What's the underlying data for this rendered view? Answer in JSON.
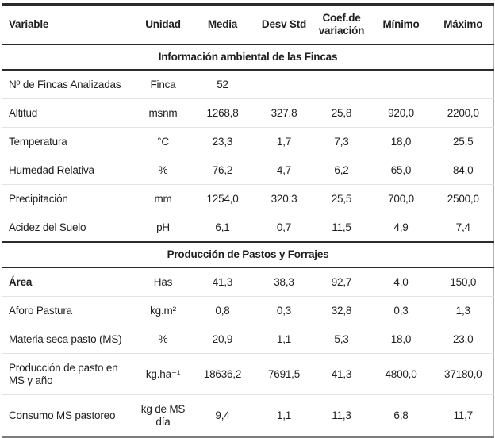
{
  "colors": {
    "text": "#1f1f1f",
    "border_dark": "#2b2b2b",
    "border_light": "#e3e3e3",
    "border_bottom_gray": "#7c7c7c",
    "border_side_gray": "#b3b3b3",
    "background": "#ffffff"
  },
  "table": {
    "columns": [
      "Variable",
      "Unidad",
      "Media",
      "Desv Std",
      "Coef.de\nvariación",
      "Mínimo",
      "Máximo"
    ],
    "sections": [
      {
        "title": "Información ambiental de las Fincas",
        "rows": [
          [
            "Nº de Fincas Analizadas",
            "Finca",
            "52",
            "",
            "",
            "",
            ""
          ],
          [
            "Altitud",
            "msnm",
            "1268,8",
            "327,8",
            "25,8",
            "920,0",
            "2200,0"
          ],
          [
            "Temperatura",
            "°C",
            "23,3",
            "1,7",
            "7,3",
            "18,0",
            "25,5"
          ],
          [
            "Humedad Relativa",
            "%",
            "76,2",
            "4,7",
            "6,2",
            "65,0",
            "84,0"
          ],
          [
            "Precipitación",
            "mm",
            "1254,0",
            "320,3",
            "25,5",
            "700,0",
            "2500,0"
          ],
          [
            "Acidez del Suelo",
            "pH",
            "6,1",
            "0,7",
            "11,5",
            "4,9",
            "7,4"
          ]
        ]
      },
      {
        "title": "Producción de Pastos y Forrajes",
        "rows": [
          [
            "Área",
            "Has",
            "41,3",
            "38,3",
            "92,7",
            "4,0",
            "150,0"
          ],
          [
            "Aforo Pastura",
            "kg.m²",
            "0,8",
            "0,3",
            "32,8",
            "0,3",
            "1,3"
          ],
          [
            "Materia seca pasto (MS)",
            "%",
            "20,9",
            "1,1",
            "5,3",
            "18,0",
            "23,0"
          ],
          [
            "Producción de pasto en MS y año",
            "kg.ha⁻¹",
            "18636,2",
            "7691,5",
            "41,3",
            "4800,0",
            "37180,0"
          ],
          [
            "Consumo MS pastoreo",
            "kg de MS\ndía",
            "9,4",
            "1,1",
            "11,3",
            "6,8",
            "11,7"
          ]
        ]
      }
    ]
  }
}
